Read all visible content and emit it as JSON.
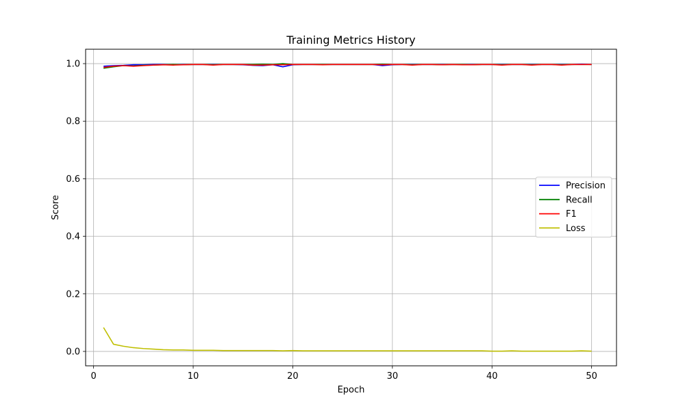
{
  "chart_data": {
    "type": "line",
    "title": "Training Metrics History",
    "xlabel": "Epoch",
    "ylabel": "Score",
    "xlim": [
      -0.8,
      52.5
    ],
    "ylim": [
      -0.05,
      1.05
    ],
    "xticks": [
      0,
      10,
      20,
      30,
      40,
      50
    ],
    "yticks": [
      0.0,
      0.2,
      0.4,
      0.6,
      0.8,
      1.0
    ],
    "xtick_labels": [
      "0",
      "10",
      "20",
      "30",
      "40",
      "50"
    ],
    "ytick_labels": [
      "0.0",
      "0.2",
      "0.4",
      "0.6",
      "0.8",
      "1.0"
    ],
    "grid": true,
    "legend_position": "center-right",
    "x": [
      1,
      2,
      3,
      4,
      5,
      6,
      7,
      8,
      9,
      10,
      11,
      12,
      13,
      14,
      15,
      16,
      17,
      18,
      19,
      20,
      21,
      22,
      23,
      24,
      25,
      26,
      27,
      28,
      29,
      30,
      31,
      32,
      33,
      34,
      35,
      36,
      37,
      38,
      39,
      40,
      41,
      42,
      43,
      44,
      45,
      46,
      47,
      48,
      49,
      50
    ],
    "series": [
      {
        "name": "Precision",
        "color": "#0000ff",
        "values": [
          0.991,
          0.993,
          0.994,
          0.996,
          0.996,
          0.997,
          0.997,
          0.996,
          0.997,
          0.997,
          0.997,
          0.997,
          0.997,
          0.997,
          0.996,
          0.994,
          0.993,
          0.996,
          0.989,
          0.996,
          0.997,
          0.997,
          0.997,
          0.997,
          0.997,
          0.997,
          0.997,
          0.997,
          0.993,
          0.996,
          0.997,
          0.997,
          0.997,
          0.997,
          0.997,
          0.997,
          0.997,
          0.997,
          0.997,
          0.997,
          0.997,
          0.997,
          0.997,
          0.997,
          0.997,
          0.997,
          0.997,
          0.997,
          0.998,
          0.997
        ]
      },
      {
        "name": "Recall",
        "color": "#008000",
        "values": [
          0.984,
          0.989,
          0.993,
          0.992,
          0.994,
          0.995,
          0.996,
          0.997,
          0.996,
          0.997,
          0.997,
          0.996,
          0.997,
          0.997,
          0.997,
          0.997,
          0.998,
          0.997,
          1.0,
          0.997,
          0.997,
          0.997,
          0.997,
          0.997,
          0.997,
          0.997,
          0.997,
          0.997,
          0.998,
          0.997,
          0.997,
          0.996,
          0.997,
          0.997,
          0.996,
          0.997,
          0.997,
          0.996,
          0.997,
          0.997,
          0.996,
          0.997,
          0.997,
          0.996,
          0.997,
          0.997,
          0.996,
          0.997,
          0.997,
          0.997
        ]
      },
      {
        "name": "F1",
        "color": "#ff0000",
        "values": [
          0.987,
          0.991,
          0.993,
          0.991,
          0.993,
          0.995,
          0.996,
          0.995,
          0.996,
          0.997,
          0.997,
          0.995,
          0.997,
          0.997,
          0.997,
          0.995,
          0.995,
          0.996,
          0.996,
          0.997,
          0.997,
          0.997,
          0.996,
          0.997,
          0.997,
          0.997,
          0.997,
          0.997,
          0.996,
          0.997,
          0.997,
          0.995,
          0.997,
          0.997,
          0.996,
          0.997,
          0.996,
          0.996,
          0.997,
          0.997,
          0.995,
          0.997,
          0.997,
          0.995,
          0.997,
          0.997,
          0.995,
          0.997,
          0.997,
          0.997
        ]
      },
      {
        "name": "Loss",
        "color": "#bfbf00",
        "values": [
          0.083,
          0.025,
          0.018,
          0.013,
          0.01,
          0.008,
          0.006,
          0.005,
          0.005,
          0.004,
          0.004,
          0.004,
          0.003,
          0.003,
          0.003,
          0.003,
          0.003,
          0.003,
          0.002,
          0.003,
          0.002,
          0.002,
          0.002,
          0.002,
          0.002,
          0.002,
          0.002,
          0.002,
          0.002,
          0.002,
          0.002,
          0.002,
          0.002,
          0.002,
          0.002,
          0.002,
          0.002,
          0.002,
          0.002,
          0.001,
          0.001,
          0.002,
          0.001,
          0.001,
          0.001,
          0.001,
          0.001,
          0.001,
          0.002,
          0.001
        ]
      }
    ]
  }
}
